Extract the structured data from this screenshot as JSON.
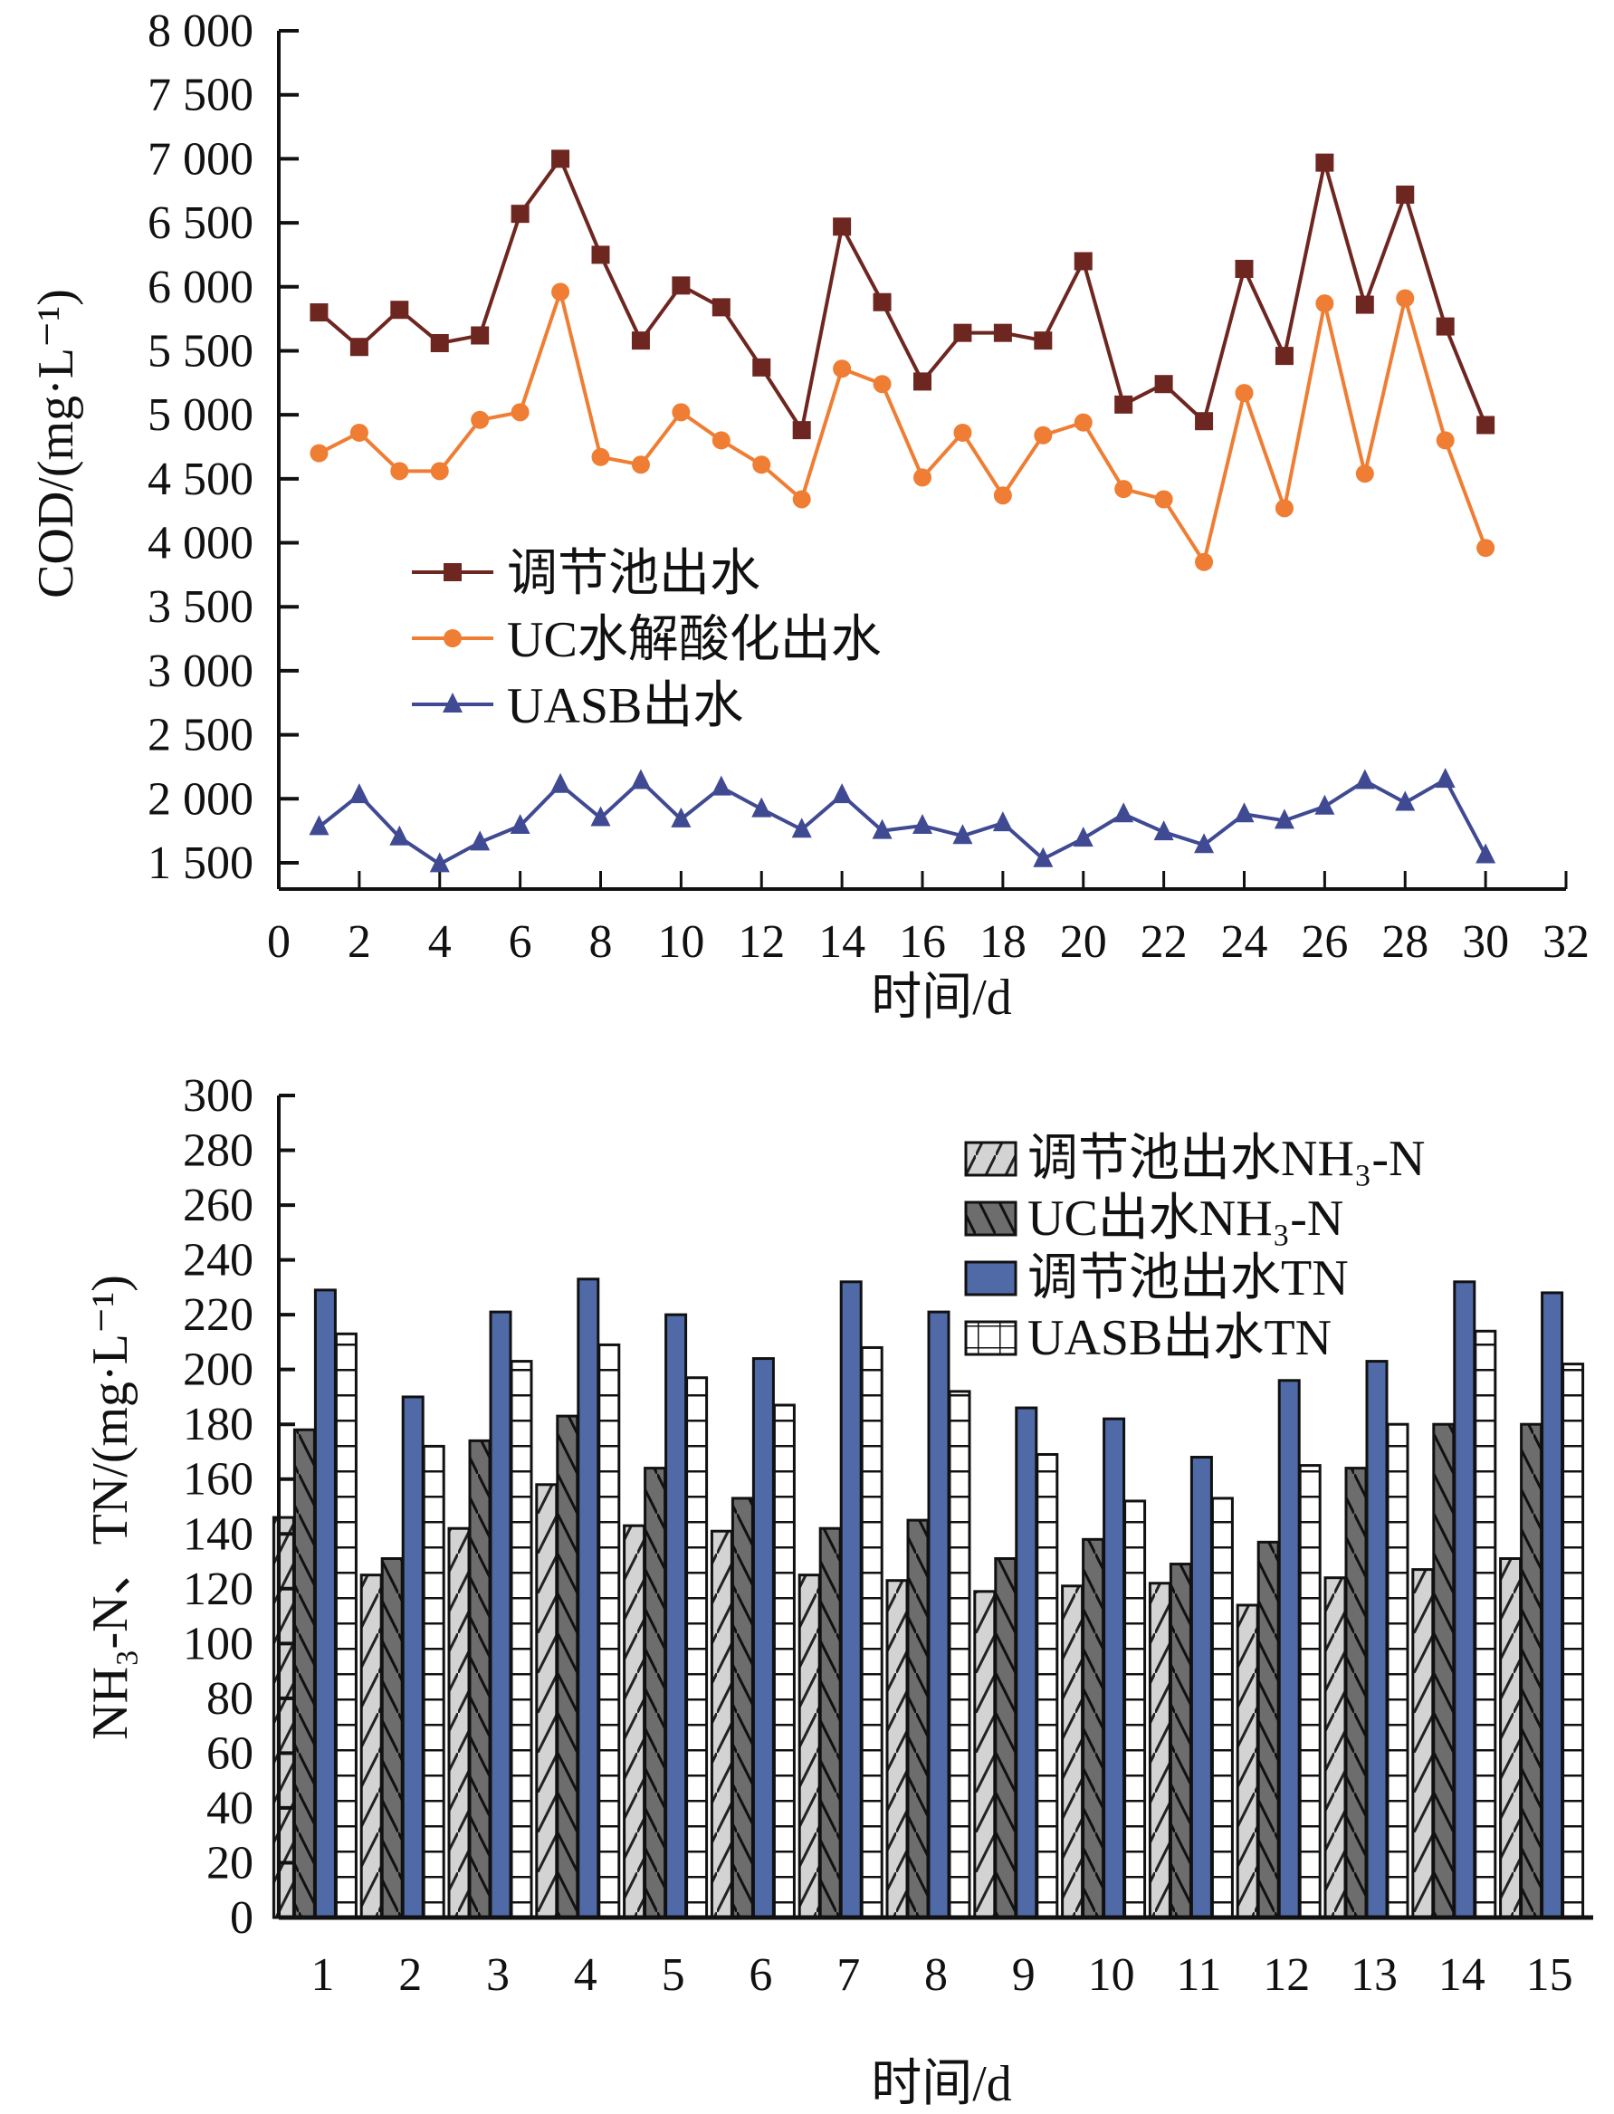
{
  "chart_data": [
    {
      "type": "line",
      "title": "",
      "xlabel": "时间/d",
      "ylabel": "COD/(mg·L⁻¹)",
      "xlim": [
        0,
        32
      ],
      "ylim": [
        1500,
        8000
      ],
      "x_ticks": [
        0,
        2,
        4,
        6,
        8,
        10,
        12,
        14,
        16,
        18,
        20,
        22,
        24,
        26,
        28,
        30,
        32
      ],
      "y_ticks": [
        1500,
        2000,
        2500,
        3000,
        3500,
        4000,
        4500,
        5000,
        5500,
        6000,
        6500,
        7000,
        7500,
        8000
      ],
      "y_tick_labels": [
        "1 500",
        "2 000",
        "2 500",
        "3 000",
        "3 500",
        "4 000",
        "4 500",
        "5 000",
        "5 500",
        "6 000",
        "6 500",
        "7 000",
        "7 500",
        "8 000"
      ],
      "grid": false,
      "legend_position": "center-left",
      "x": [
        1,
        2,
        3,
        4,
        5,
        6,
        7,
        8,
        9,
        10,
        11,
        12,
        13,
        14,
        15,
        16,
        17,
        18,
        19,
        20,
        21,
        22,
        23,
        24,
        25,
        26,
        27,
        28,
        29,
        30
      ],
      "series": [
        {
          "name": "调节池出水",
          "marker": "square",
          "color": "#6e2620",
          "values": [
            5800,
            5530,
            5820,
            5560,
            5620,
            6570,
            7000,
            6250,
            5580,
            6010,
            5840,
            5370,
            4880,
            6470,
            5880,
            5260,
            5640,
            5640,
            5580,
            6200,
            5080,
            5240,
            4950,
            6140,
            5460,
            6970,
            5860,
            6720,
            5690,
            4920
          ]
        },
        {
          "name": "UC水解酸化出水",
          "marker": "circle",
          "color": "#ef7d33",
          "values": [
            4700,
            4860,
            4560,
            4560,
            4960,
            5020,
            5960,
            4670,
            4610,
            5020,
            4800,
            4610,
            4340,
            5360,
            5240,
            4510,
            4860,
            4370,
            4840,
            4940,
            4420,
            4340,
            3850,
            5170,
            4270,
            5870,
            4540,
            5910,
            4800,
            3960
          ]
        },
        {
          "name": "UASB出水",
          "marker": "triangle",
          "color": "#3f4a93",
          "values": [
            1780,
            2030,
            1700,
            1490,
            1660,
            1790,
            2110,
            1850,
            2140,
            1840,
            2090,
            1920,
            1760,
            2030,
            1750,
            1790,
            1710,
            1810,
            1530,
            1690,
            1880,
            1740,
            1640,
            1880,
            1830,
            1940,
            2140,
            1970,
            2150,
            1560
          ]
        }
      ]
    },
    {
      "type": "bar",
      "title": "",
      "xlabel": "时间/d",
      "ylabel": "NH₃-N、TN/(mg·L⁻¹)",
      "ylim": [
        0,
        300
      ],
      "y_ticks": [
        0,
        20,
        40,
        60,
        80,
        100,
        120,
        140,
        160,
        180,
        200,
        220,
        240,
        260,
        280,
        300
      ],
      "grid": false,
      "legend_position": "top-right",
      "categories": [
        "1",
        "2",
        "3",
        "4",
        "5",
        "6",
        "7",
        "8",
        "9",
        "10",
        "11",
        "12",
        "13",
        "14",
        "15"
      ],
      "series": [
        {
          "name": "调节池出水NH₃-N",
          "pattern": "forward-diagonal",
          "color": "#d3d3d3",
          "values": [
            146,
            125,
            142,
            158,
            143,
            141,
            125,
            123,
            119,
            121,
            122,
            114,
            124,
            127,
            131
          ]
        },
        {
          "name": "UC出水NH₃-N",
          "pattern": "back-diagonal",
          "color": "#6d6d6d",
          "values": [
            178,
            131,
            174,
            183,
            164,
            153,
            142,
            145,
            131,
            138,
            129,
            137,
            164,
            180,
            180
          ]
        },
        {
          "name": "调节池出水TN",
          "pattern": "solid",
          "color": "#506aa8",
          "values": [
            229,
            190,
            221,
            233,
            220,
            204,
            232,
            221,
            186,
            182,
            168,
            196,
            203,
            232,
            228
          ]
        },
        {
          "name": "UASB出水TN",
          "pattern": "grid",
          "color": "#ffffff",
          "values": [
            213,
            172,
            203,
            209,
            197,
            187,
            208,
            192,
            169,
            152,
            153,
            165,
            180,
            214,
            202
          ]
        }
      ]
    }
  ]
}
